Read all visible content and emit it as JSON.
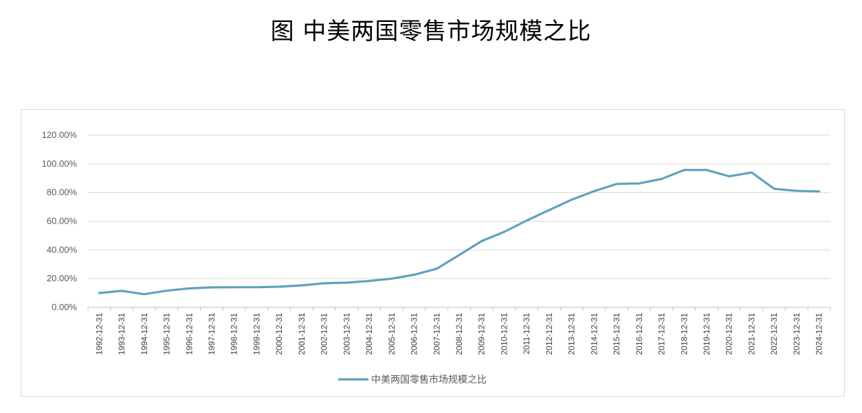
{
  "title": "图  中美两国零售市场规模之比",
  "colors": {
    "series": "#5fa2bd",
    "grid": "#d9d9d9",
    "text": "#595959"
  },
  "chart_data": {
    "type": "line",
    "ylim": [
      0,
      120
    ],
    "y_ticks": [
      "0.00%",
      "20.00%",
      "40.00%",
      "60.00%",
      "80.00%",
      "100.00%",
      "120.00%"
    ],
    "y_tick_values": [
      0,
      20,
      40,
      60,
      80,
      100,
      120
    ],
    "x": [
      "1992-12-31",
      "1993-12-31",
      "1994-12-31",
      "1995-12-31",
      "1996-12-31",
      "1997-12-31",
      "1998-12-31",
      "1999-12-31",
      "2000-12-31",
      "2001-12-31",
      "2002-12-31",
      "2003-12-31",
      "2004-12-31",
      "2005-12-31",
      "2006-12-31",
      "2007-12-31",
      "2008-12-31",
      "2009-12-31",
      "2010-12-31",
      "2011-12-31",
      "2012-12-31",
      "2013-12-31",
      "2014-12-31",
      "2015-12-31",
      "2016-12-31",
      "2017-12-31",
      "2018-12-31",
      "2019-12-31",
      "2020-12-31",
      "2021-12-31",
      "2022-12-31",
      "2023-12-31",
      "2024-12-31"
    ],
    "series": [
      {
        "name": "中美两国零售市场规模之比",
        "values": [
          10.0,
          11.5,
          9.2,
          11.6,
          13.2,
          13.9,
          14.0,
          14.0,
          14.4,
          15.3,
          16.8,
          17.2,
          18.4,
          20.0,
          22.7,
          26.9,
          36.5,
          46.2,
          52.6,
          60.5,
          67.8,
          75.0,
          81.0,
          86.0,
          86.4,
          89.5,
          95.7,
          95.7,
          91.3,
          94.0,
          82.6,
          81.2,
          80.8
        ]
      }
    ],
    "legend_position": "bottom",
    "grid": true
  }
}
